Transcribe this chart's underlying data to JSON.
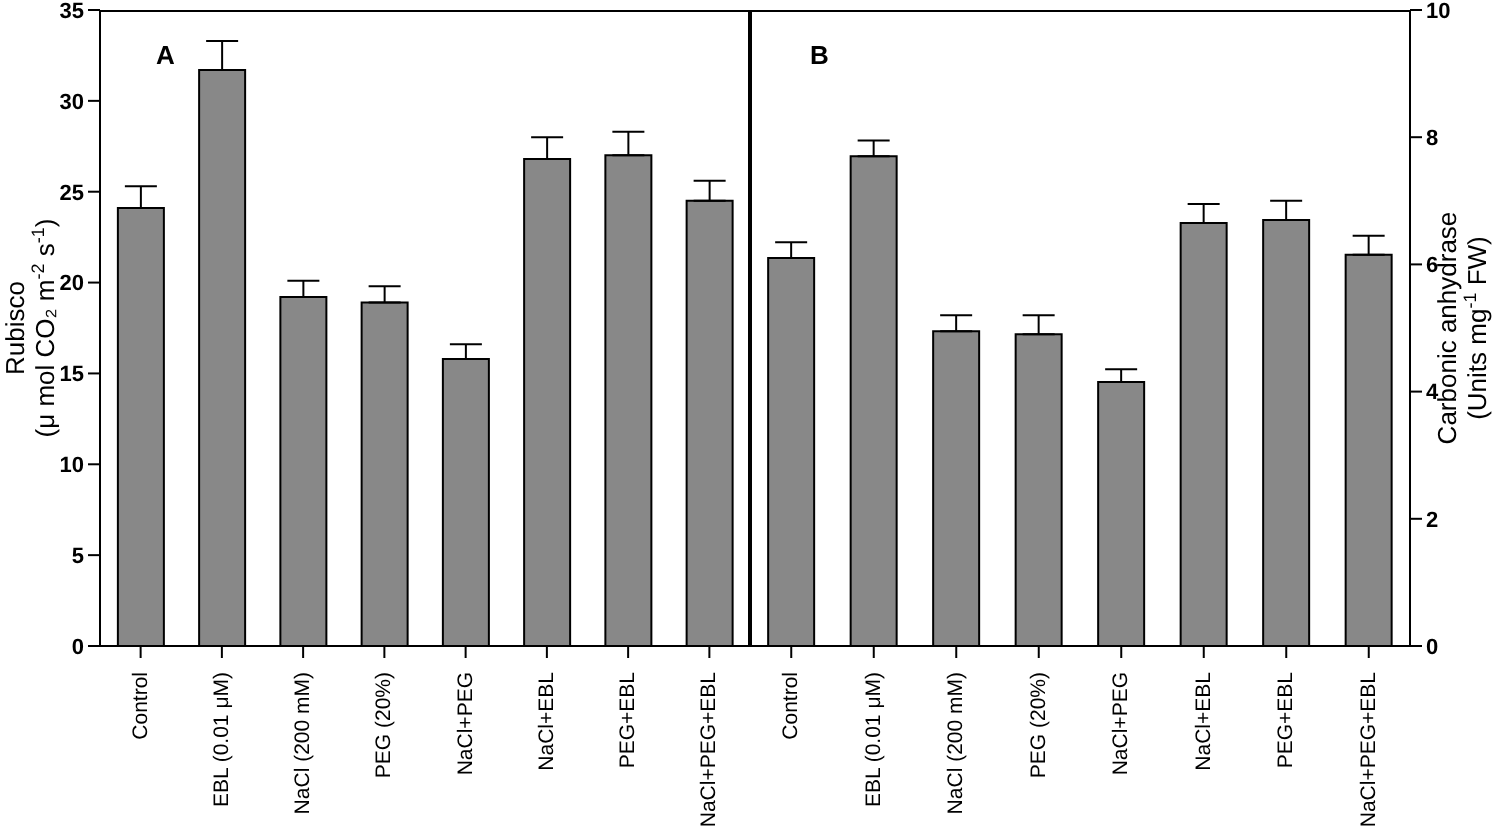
{
  "chart_data": [
    {
      "type": "bar",
      "categories": [
        "Control",
        "EBL (0.01 μM)",
        "NaCl (200 mM)",
        "PEG (20%)",
        "NaCl+PEG",
        "NaCl+EBL",
        "PEG+EBL",
        "NaCl+PEG+EBL"
      ],
      "ylabel": "Rubisco\n(μ mol CO₂ m$^{-2}$ s$^{-1}$)",
      "series": [
        {
          "color": "#888888",
          "values": [
            24.1,
            31.7,
            19.2,
            18.9,
            15.8,
            26.8,
            27.0,
            24.5
          ],
          "errors": [
            [
              24.1,
              25.3
            ],
            [
              31.7,
              33.3
            ],
            [
              19.2,
              20.1
            ],
            [
              18.9,
              19.8
            ],
            [
              15.8,
              16.6
            ],
            [
              26.8,
              28.0
            ],
            [
              27.0,
              28.3
            ],
            [
              24.5,
              25.6
            ]
          ]
        }
      ],
      "ylim": [
        0,
        35
      ],
      "yticks": [
        0,
        5,
        10,
        15,
        20,
        25,
        30,
        35
      ],
      "annotations": [
        "A"
      ]
    },
    {
      "type": "bar",
      "categories": [
        "Control",
        "EBL (0.01 μM)",
        "NaCl (200 mM)",
        "PEG (20%)",
        "NaCl+PEG",
        "NaCl+EBL",
        "PEG+EBL",
        "NaCl+PEG+EBL"
      ],
      "y2label": "Carbonic anhydrase\n(Units mg$^{-1}$ FW)",
      "series": [
        {
          "color": "#888888",
          "axis": "y2",
          "values": [
            6.1,
            7.7,
            4.95,
            4.9,
            4.15,
            6.65,
            6.7,
            6.15
          ],
          "errors": [
            [
              6.1,
              6.35
            ],
            [
              7.7,
              7.95
            ],
            [
              4.95,
              5.2
            ],
            [
              4.9,
              5.2
            ],
            [
              4.15,
              4.35
            ],
            [
              6.65,
              6.95
            ],
            [
              6.7,
              7.0
            ],
            [
              6.15,
              6.45
            ]
          ]
        }
      ],
      "y2lim": [
        0,
        10
      ],
      "y2ticks": [
        0,
        2,
        4,
        6,
        8,
        10
      ],
      "annotations": [
        "B"
      ]
    }
  ]
}
